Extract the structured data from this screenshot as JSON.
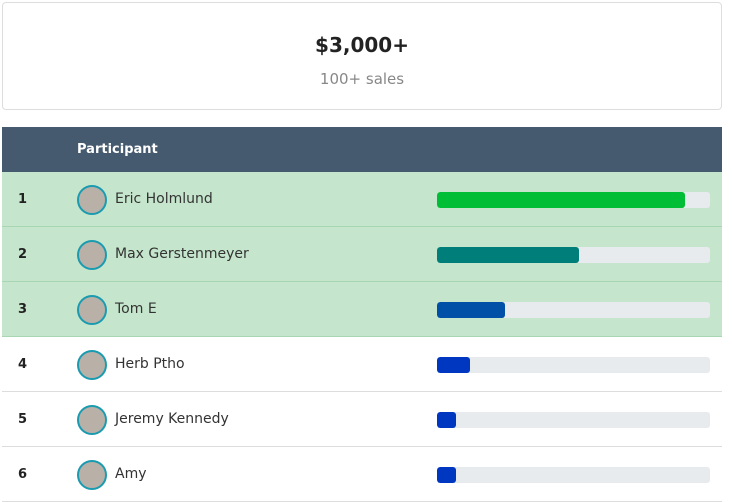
{
  "summary": {
    "amount": "$3,000+",
    "caption": "100+ sales"
  },
  "table": {
    "header": {
      "participant": "Participant"
    },
    "progress_scale": [
      0,
      100
    ],
    "rows": [
      {
        "rank": "1",
        "name": "Eric Holmlund",
        "progress": 91,
        "color": "#00bf36",
        "highlight": true
      },
      {
        "rank": "2",
        "name": "Max Gerstenmeyer",
        "progress": 52,
        "color": "#007f7a",
        "highlight": true
      },
      {
        "rank": "3",
        "name": "Tom E",
        "progress": 25,
        "color": "#0050a8",
        "highlight": true
      },
      {
        "rank": "4",
        "name": "Herb Ptho",
        "progress": 12,
        "color": "#0037c0",
        "highlight": false
      },
      {
        "rank": "5",
        "name": "Jeremy Kennedy",
        "progress": 7,
        "color": "#0037c0",
        "highlight": false
      },
      {
        "rank": "6",
        "name": "Amy",
        "progress": 7,
        "color": "#0037c0",
        "highlight": false
      }
    ]
  }
}
